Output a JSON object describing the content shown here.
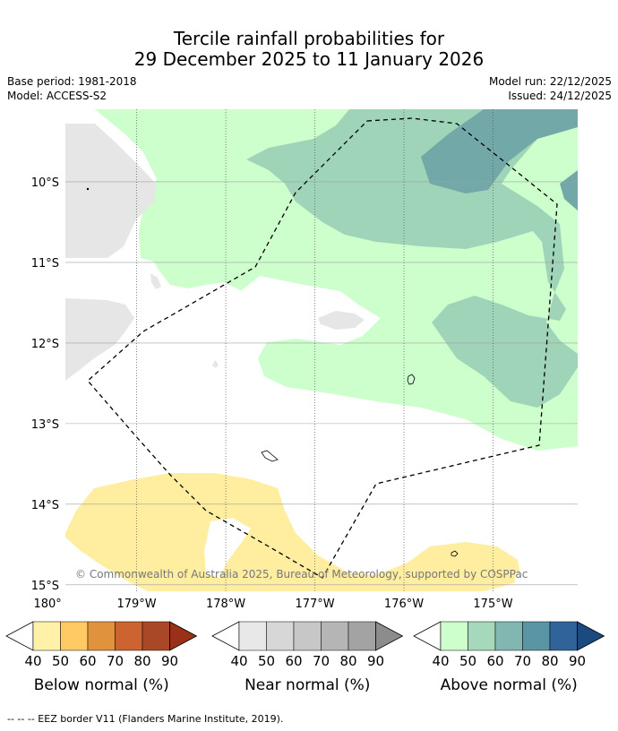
{
  "header": {
    "title_line1": "Tercile rainfall probabilities for",
    "title_line2": "29 December 2025 to 11 January 2026",
    "base_period": "Base period: 1981-2018",
    "model": "Model: ACCESS-S2",
    "model_run": "Model run: 22/12/2025",
    "issued": "Issued: 24/12/2025"
  },
  "chart_data": {
    "type": "heatmap",
    "title": "Tercile rainfall probabilities for 29 December 2025 to 11 January 2026",
    "lon_range": [
      -179.8,
      -174.05
    ],
    "lat_range": [
      -15.08,
      -9.1
    ],
    "lat_ticks": [
      {
        "value": -10,
        "label": "10°S"
      },
      {
        "value": -11,
        "label": "11°S"
      },
      {
        "value": -12,
        "label": "12°S"
      },
      {
        "value": -13,
        "label": "13°S"
      },
      {
        "value": -14,
        "label": "14°S"
      },
      {
        "value": -15,
        "label": "15°S"
      }
    ],
    "lon_ticks": [
      {
        "value": 180,
        "label": "180°"
      },
      {
        "value": -179,
        "label": "179°W"
      },
      {
        "value": -178,
        "label": "178°W"
      },
      {
        "value": -177,
        "label": "177°W"
      },
      {
        "value": -176,
        "label": "176°W"
      },
      {
        "value": -175,
        "label": "175°W"
      }
    ],
    "regions": [
      {
        "category": "below_normal",
        "probability_band": "40-50",
        "color": "#ffeda0",
        "area": "south-west"
      },
      {
        "category": "near_normal",
        "probability_band": "40-50",
        "color": "#e6e6e6",
        "area": "west"
      },
      {
        "category": "above_normal",
        "probability_band": "40-50",
        "color": "#ccffcc",
        "area": "north and east"
      },
      {
        "category": "above_normal",
        "probability_band": "50-60",
        "color": "#a0d4b8",
        "area": "north-east"
      },
      {
        "category": "above_normal",
        "probability_band": "60-70",
        "color": "#72a8a8",
        "area": "far north-east"
      }
    ],
    "colorbars": [
      {
        "name": "Below normal (%)",
        "ticks": [
          "40",
          "50",
          "60",
          "70",
          "80",
          "90"
        ],
        "colors": [
          "#fff2a8",
          "#ffc965",
          "#e0923c",
          "#cc6330",
          "#a94826",
          "#9a3017"
        ]
      },
      {
        "name": "Near normal (%)",
        "ticks": [
          "40",
          "50",
          "60",
          "70",
          "80",
          "90"
        ],
        "colors": [
          "#e8e8e8",
          "#d7d7d7",
          "#c7c7c7",
          "#b5b5b5",
          "#a3a3a3",
          "#8c8c8c"
        ]
      },
      {
        "name": "Above normal (%)",
        "ticks": [
          "40",
          "50",
          "60",
          "70",
          "80",
          "90"
        ],
        "colors": [
          "#ccffcc",
          "#a6d9bb",
          "#82b7b1",
          "#5a95a6",
          "#2f6399",
          "#1a4a80"
        ]
      }
    ],
    "overlay": "EEZ boundary (dashed)"
  },
  "copyright": "© Commonwealth of Australia 2025, Bureau of Meteorology, supported by COSPPac",
  "footnote": "--  --  -- EEZ border V11 (Flanders Marine Institute, 2019).",
  "colors": {
    "frame": "#000000",
    "grid": "#a0a0a0",
    "copyright_text": "#777777"
  }
}
